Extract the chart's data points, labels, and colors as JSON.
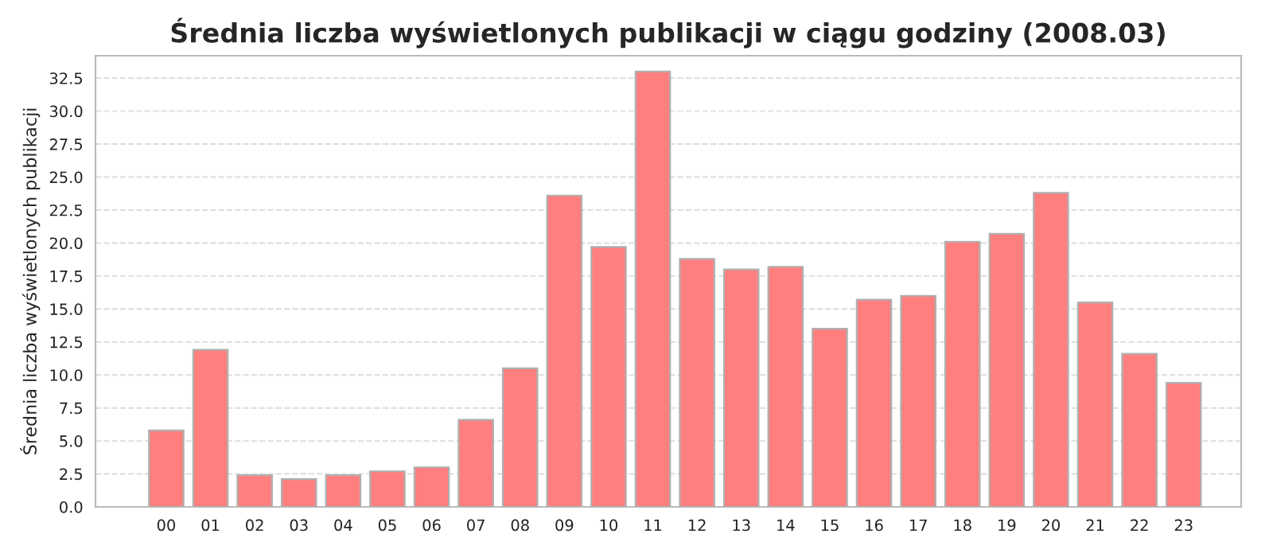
{
  "chart_data": {
    "type": "bar",
    "title": "Średnia liczba wyświetlonych publikacji w ciągu godziny (2008.03)",
    "ylabel": "Średnia liczba wyświetlonych publikacji",
    "categories": [
      "00",
      "01",
      "02",
      "03",
      "04",
      "05",
      "06",
      "07",
      "08",
      "09",
      "10",
      "11",
      "12",
      "13",
      "14",
      "15",
      "16",
      "17",
      "18",
      "19",
      "20",
      "21",
      "22",
      "23"
    ],
    "values": [
      5.8,
      11.9,
      2.4,
      2.1,
      2.4,
      2.7,
      3.0,
      6.6,
      10.5,
      23.6,
      19.7,
      33.0,
      18.8,
      18.0,
      18.2,
      13.5,
      15.7,
      16.0,
      20.1,
      20.7,
      23.8,
      15.5,
      11.6,
      9.4
    ],
    "color": "#ff7f7f",
    "ylim": [
      0,
      34.2
    ],
    "yticks": [
      {
        "value": 0,
        "label": "0.0"
      },
      {
        "value": 2.5,
        "label": "2.5"
      },
      {
        "value": 5,
        "label": "5.0"
      },
      {
        "value": 7.5,
        "label": "7.5"
      },
      {
        "value": 10,
        "label": "10.0"
      },
      {
        "value": 12.5,
        "label": "12.5"
      },
      {
        "value": 15,
        "label": "15.0"
      },
      {
        "value": 17.5,
        "label": "17.5"
      },
      {
        "value": 20,
        "label": "20.0"
      },
      {
        "value": 22.5,
        "label": "22.5"
      },
      {
        "value": 25,
        "label": "25.0"
      },
      {
        "value": 27.5,
        "label": "27.5"
      },
      {
        "value": 30,
        "label": "30.0"
      },
      {
        "value": 32.5,
        "label": "32.5"
      }
    ],
    "grid": "y"
  }
}
